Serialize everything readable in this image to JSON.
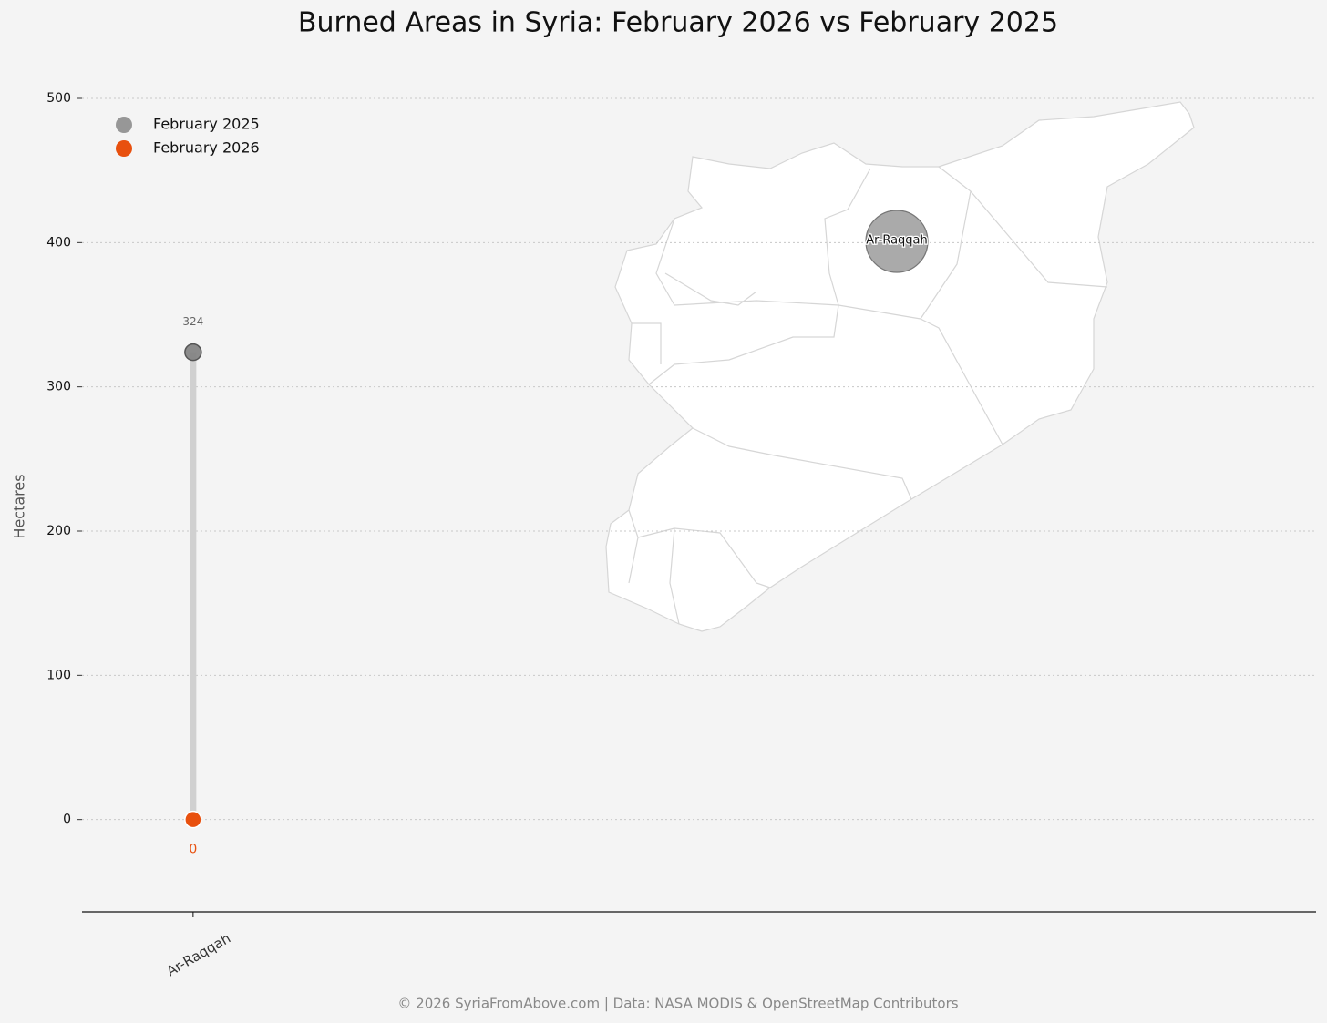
{
  "chart_data": {
    "type": "dumbbell",
    "title": "Burned Areas in Syria: February 2026 vs February 2025",
    "ylabel": "Hectares",
    "footer": "© 2026 SyriaFromAbove.com | Data: NASA MODIS & OpenStreetMap Contributors",
    "categories": [
      "Ar-Raqqah"
    ],
    "series": [
      {
        "name": "February 2025",
        "color": "#808080",
        "values": [
          324
        ]
      },
      {
        "name": "February 2026",
        "color": "#e8500e",
        "values": [
          0
        ]
      }
    ],
    "ylim": [
      -64,
      530
    ],
    "yticks": [
      0,
      100,
      200,
      300,
      400,
      500
    ],
    "grid": true,
    "legend": "upper-left"
  }
}
